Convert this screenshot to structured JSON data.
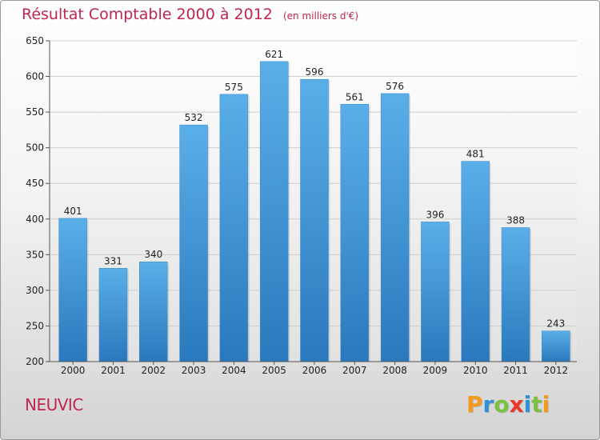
{
  "chart_data": {
    "type": "bar",
    "title": "Résultat Comptable 2000 à 2012",
    "subtitle": "(en milliers d'€)",
    "categories": [
      "2000",
      "2001",
      "2002",
      "2003",
      "2004",
      "2005",
      "2006",
      "2007",
      "2008",
      "2009",
      "2010",
      "2011",
      "2012"
    ],
    "values": [
      401,
      331,
      340,
      532,
      575,
      621,
      596,
      561,
      576,
      396,
      481,
      388,
      243
    ],
    "ylim": [
      200,
      650
    ],
    "yticks": [
      200,
      250,
      300,
      350,
      400,
      450,
      500,
      550,
      600,
      650
    ],
    "xlabel": "",
    "ylabel": "",
    "grid": true,
    "bar_color": "#4a9fdc"
  },
  "commune": "NEUVIC",
  "logo": {
    "text": "Proxiti",
    "letters": [
      {
        "char": "P",
        "color": "#f39a1e"
      },
      {
        "char": "r",
        "color": "#2f8fd8"
      },
      {
        "char": "o",
        "color": "#7bc043"
      },
      {
        "char": "x",
        "color": "#e8392b"
      },
      {
        "char": "i",
        "color": "#2f8fd8"
      },
      {
        "char": "t",
        "color": "#7bc043"
      },
      {
        "char": "i",
        "color": "#f39a1e"
      }
    ]
  }
}
